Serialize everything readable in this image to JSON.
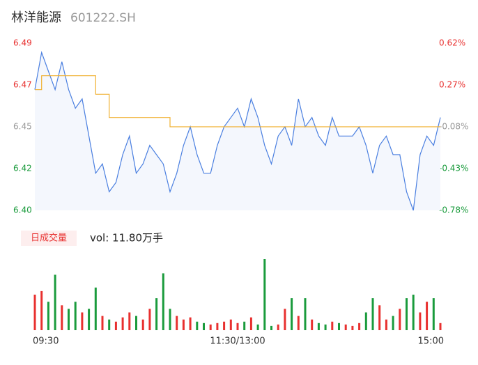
{
  "chart_data": {
    "type": "line",
    "title": "林洋能源",
    "subtitle": "601222.SH",
    "x": [
      0,
      4,
      8,
      12,
      16,
      20,
      24,
      28,
      32,
      36,
      40,
      44,
      48,
      52,
      56,
      60,
      64,
      68,
      72,
      76,
      80,
      84,
      88,
      92,
      96,
      100,
      104,
      108,
      112,
      116,
      120,
      124,
      128,
      132,
      136,
      140,
      144,
      148,
      152,
      156,
      160,
      164,
      168,
      172,
      176,
      180,
      184,
      188,
      192,
      196,
      200,
      204,
      208,
      212,
      216,
      220,
      224,
      228,
      232,
      236,
      240
    ],
    "xlim": [
      0,
      240
    ],
    "xticks": [
      {
        "value": 0,
        "label": "09:30"
      },
      {
        "value": 120,
        "label": "11:30/13:00"
      },
      {
        "value": 240,
        "label": "15:00"
      }
    ],
    "ylim": [
      6.4,
      6.49
    ],
    "yticks": [
      6.49,
      {
        "value": 6.4675,
        "label": "6.47"
      },
      {
        "value": 6.445,
        "label": "6.45"
      },
      {
        "value": 6.4225,
        "label": "6.42"
      },
      {
        "value": 6.4,
        "label": "6.40"
      }
    ],
    "y2lim": [
      -0.78,
      0.62
    ],
    "y2ticks": [
      {
        "value": 0.62,
        "label": "0.62%"
      },
      {
        "value": 0.27,
        "label": "0.27%"
      },
      {
        "value": -0.08,
        "label": "-0.08%"
      },
      {
        "value": -0.43,
        "label": "-0.43%"
      },
      {
        "value": -0.78,
        "label": "-0.78%"
      }
    ],
    "up_color": "#e8302f",
    "down_color": "#1a9b3c",
    "flat_color": "#999999",
    "series": [
      {
        "color": "#4a7fe0",
        "values": [
          6.465,
          6.485,
          6.475,
          6.465,
          6.48,
          6.465,
          6.455,
          6.46,
          6.44,
          6.42,
          6.425,
          6.41,
          6.415,
          6.43,
          6.44,
          6.42,
          6.425,
          6.435,
          6.43,
          6.425,
          6.41,
          6.42,
          6.435,
          6.445,
          6.43,
          6.42,
          6.42,
          6.435,
          6.445,
          6.45,
          6.455,
          6.445,
          6.46,
          6.45,
          6.435,
          6.425,
          6.44,
          6.445,
          6.435,
          6.46,
          6.445,
          6.45,
          6.44,
          6.435,
          6.45,
          6.44,
          6.44,
          6.44,
          6.445,
          6.435,
          6.42,
          6.435,
          6.44,
          6.43,
          6.43,
          6.41,
          6.4,
          6.43,
          6.44,
          6.435,
          6.45
        ]
      },
      {
        "color": "#f0b030",
        "values": [
          6.465,
          6.4725,
          6.4725,
          6.4725,
          6.4725,
          6.4725,
          6.4725,
          6.4725,
          6.4725,
          6.4625,
          6.4625,
          6.45,
          6.45,
          6.45,
          6.45,
          6.45,
          6.45,
          6.45,
          6.45,
          6.45,
          6.445,
          6.445,
          6.445,
          6.445,
          6.445,
          6.445,
          6.445,
          6.445,
          6.445,
          6.445,
          6.445,
          6.445,
          6.445,
          6.445,
          6.445,
          6.445,
          6.445,
          6.445,
          6.445,
          6.445,
          6.445,
          6.445,
          6.445,
          6.445,
          6.445,
          6.445,
          6.445,
          6.445,
          6.445,
          6.445,
          6.445,
          6.445,
          6.445,
          6.445,
          6.445,
          6.445,
          6.445,
          6.445,
          6.445,
          6.445,
          6.445
        ]
      }
    ],
    "volume": {
      "label": "日成交量",
      "text": "vol: 11.80万手",
      "ylim": [
        0,
        100
      ],
      "values": [
        50,
        55,
        40,
        78,
        35,
        30,
        40,
        25,
        30,
        60,
        20,
        15,
        12,
        18,
        25,
        20,
        15,
        30,
        45,
        80,
        30,
        20,
        15,
        18,
        12,
        10,
        8,
        10,
        12,
        15,
        10,
        12,
        18,
        8,
        100,
        6,
        8,
        30,
        45,
        20,
        45,
        15,
        10,
        8,
        12,
        10,
        8,
        6,
        10,
        25,
        45,
        35,
        15,
        20,
        30,
        45,
        50,
        25,
        40,
        45,
        10
      ]
    }
  }
}
